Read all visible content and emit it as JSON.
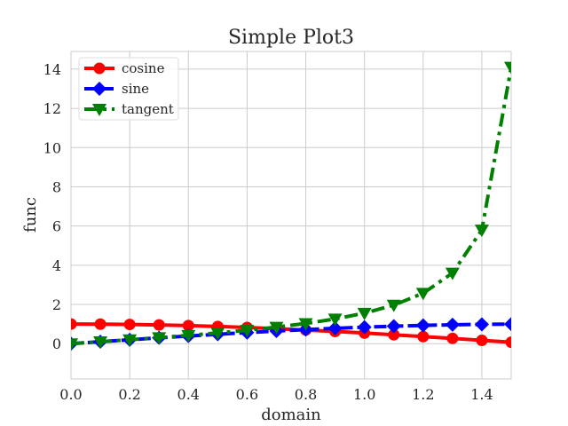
{
  "chart_data": {
    "type": "line",
    "title": "Simple Plot3",
    "xlabel": "domain",
    "ylabel": "func",
    "xlim": [
      0.0,
      1.5
    ],
    "ylim": [
      -1.8,
      14.9
    ],
    "xticks": [
      0.0,
      0.2,
      0.4,
      0.6,
      0.8,
      1.0,
      1.2,
      1.4
    ],
    "xtick_labels": [
      "0.0",
      "0.2",
      "0.4",
      "0.6",
      "0.8",
      "1.0",
      "1.2",
      "1.4"
    ],
    "yticks": [
      0,
      2,
      4,
      6,
      8,
      10,
      12,
      14
    ],
    "ytick_labels": [
      "0",
      "2",
      "4",
      "6",
      "8",
      "10",
      "12",
      "14"
    ],
    "grid": true,
    "legend_position": "top-left",
    "x": [
      0.0,
      0.1,
      0.2,
      0.3,
      0.4,
      0.5,
      0.6,
      0.7,
      0.8,
      0.9,
      1.0,
      1.1,
      1.2,
      1.3,
      1.4,
      1.5
    ],
    "series": [
      {
        "name": "cosine",
        "color": "#ff0000",
        "linestyle": "solid",
        "marker": "circle",
        "values": [
          1.0,
          0.995,
          0.98,
          0.955,
          0.921,
          0.878,
          0.825,
          0.765,
          0.697,
          0.622,
          0.54,
          0.454,
          0.362,
          0.268,
          0.17,
          0.071
        ]
      },
      {
        "name": "sine",
        "color": "#0000ff",
        "linestyle": "dashed",
        "marker": "diamond",
        "values": [
          0.0,
          0.1,
          0.199,
          0.296,
          0.389,
          0.479,
          0.565,
          0.644,
          0.717,
          0.783,
          0.841,
          0.891,
          0.932,
          0.964,
          0.985,
          0.997
        ]
      },
      {
        "name": "tangent",
        "color": "#008000",
        "linestyle": "dashdot",
        "marker": "triangle-down",
        "values": [
          0.0,
          0.1,
          0.203,
          0.309,
          0.423,
          0.546,
          0.684,
          0.842,
          1.03,
          1.26,
          1.557,
          1.965,
          2.572,
          3.602,
          5.798,
          14.101
        ]
      }
    ]
  }
}
